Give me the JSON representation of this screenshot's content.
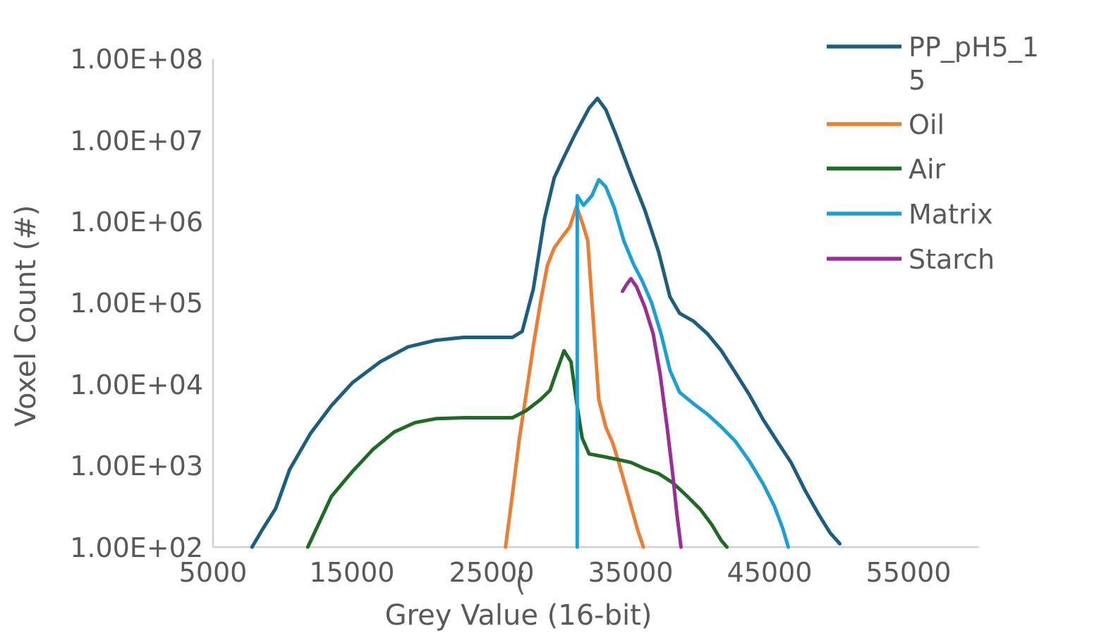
{
  "chart_data": {
    "type": "line",
    "xlabel": "Grey Value (16-bit)",
    "ylabel": "Voxel Count (#)",
    "y_scale": "log",
    "x_range": [
      5000,
      60000
    ],
    "y_range": [
      100,
      100000000
    ],
    "x_ticks": [
      "5000",
      "15000",
      "25000",
      "35000",
      "45000",
      "55000"
    ],
    "y_ticks": [
      "1.00E+08",
      "1.00E+07",
      "1.00E+06",
      "1.00E+05",
      "1.00E+04",
      "1.00E+03",
      "1.00E+02"
    ],
    "stray_label": "(",
    "legend_position": "top-right",
    "legend_lines": {
      "PP_pH5_15": [
        "PP_pH5_1",
        "5"
      ]
    },
    "series": [
      {
        "name": "PP_pH5_15",
        "color": "#1a5e82",
        "points": [
          [
            7800,
            100
          ],
          [
            8500,
            160
          ],
          [
            9500,
            300
          ],
          [
            10500,
            900
          ],
          [
            12000,
            2500
          ],
          [
            13500,
            5500
          ],
          [
            15000,
            10500
          ],
          [
            17000,
            19000
          ],
          [
            19000,
            29000
          ],
          [
            21000,
            35000
          ],
          [
            23000,
            38000
          ],
          [
            25000,
            38000
          ],
          [
            26500,
            38000
          ],
          [
            27200,
            45000
          ],
          [
            28000,
            150000
          ],
          [
            28800,
            1100000
          ],
          [
            29500,
            3500000
          ],
          [
            30200,
            6300000
          ],
          [
            31000,
            12000000
          ],
          [
            32000,
            25000000
          ],
          [
            32600,
            33000000
          ],
          [
            33200,
            24000000
          ],
          [
            34000,
            11000000
          ],
          [
            35000,
            3800000
          ],
          [
            36000,
            1400000
          ],
          [
            37000,
            420000
          ],
          [
            37800,
            120000
          ],
          [
            38500,
            75000
          ],
          [
            39500,
            60000
          ],
          [
            40500,
            42000
          ],
          [
            41500,
            26000
          ],
          [
            42500,
            14000
          ],
          [
            43500,
            7500
          ],
          [
            44500,
            3700
          ],
          [
            45500,
            2000
          ],
          [
            46500,
            1100
          ],
          [
            47500,
            500
          ],
          [
            48500,
            250
          ],
          [
            49300,
            150
          ],
          [
            50000,
            110
          ]
        ]
      },
      {
        "name": "Oil",
        "color": "#ed7d31",
        "points": [
          [
            26000,
            100
          ],
          [
            26500,
            450
          ],
          [
            27000,
            2200
          ],
          [
            27500,
            8000
          ],
          [
            28000,
            30000
          ],
          [
            28500,
            100000
          ],
          [
            29000,
            290000
          ],
          [
            29500,
            480000
          ],
          [
            30000,
            630000
          ],
          [
            30600,
            860000
          ],
          [
            31100,
            1550000
          ],
          [
            31500,
            990000
          ],
          [
            31900,
            590000
          ],
          [
            32300,
            60000
          ],
          [
            32700,
            6500
          ],
          [
            33200,
            3000
          ],
          [
            33700,
            1900
          ],
          [
            34200,
            1000
          ],
          [
            34800,
            430
          ],
          [
            35500,
            160
          ],
          [
            35900,
            100
          ]
        ]
      },
      {
        "name": "Air",
        "color": "#1e6b24",
        "points": [
          [
            11800,
            100
          ],
          [
            12500,
            180
          ],
          [
            13500,
            420
          ],
          [
            15000,
            850
          ],
          [
            16500,
            1600
          ],
          [
            18000,
            2600
          ],
          [
            19500,
            3400
          ],
          [
            21000,
            3800
          ],
          [
            23000,
            3900
          ],
          [
            25000,
            3900
          ],
          [
            26500,
            3900
          ],
          [
            27500,
            4800
          ],
          [
            28500,
            6500
          ],
          [
            29200,
            8500
          ],
          [
            29700,
            15000
          ],
          [
            30200,
            26000
          ],
          [
            30700,
            19000
          ],
          [
            31100,
            6000
          ],
          [
            31500,
            2200
          ],
          [
            32000,
            1400
          ],
          [
            33000,
            1300
          ],
          [
            34000,
            1200
          ],
          [
            35000,
            1100
          ],
          [
            36000,
            920
          ],
          [
            37000,
            800
          ],
          [
            38000,
            620
          ],
          [
            39000,
            430
          ],
          [
            40000,
            290
          ],
          [
            40800,
            190
          ],
          [
            41500,
            120
          ],
          [
            41900,
            100
          ]
        ]
      },
      {
        "name": "Matrix",
        "color": "#1aa0d8",
        "points": [
          [
            31150,
            100
          ],
          [
            31150,
            2100000
          ],
          [
            31600,
            1600000
          ],
          [
            32200,
            2100000
          ],
          [
            32700,
            3300000
          ],
          [
            33200,
            2700000
          ],
          [
            33800,
            1500000
          ],
          [
            34500,
            580000
          ],
          [
            35200,
            300000
          ],
          [
            35800,
            190000
          ],
          [
            36500,
            100000
          ],
          [
            37200,
            40000
          ],
          [
            37800,
            15000
          ],
          [
            38500,
            8000
          ],
          [
            39500,
            5800
          ],
          [
            40500,
            4300
          ],
          [
            41500,
            3000
          ],
          [
            42500,
            2000
          ],
          [
            43500,
            1150
          ],
          [
            44500,
            600
          ],
          [
            45300,
            320
          ],
          [
            45900,
            170
          ],
          [
            46300,
            100
          ]
        ]
      },
      {
        "name": "Starch",
        "color": "#9b2d9b",
        "points": [
          [
            34400,
            140000
          ],
          [
            34700,
            170000
          ],
          [
            35000,
            200000
          ],
          [
            35400,
            160000
          ],
          [
            36000,
            90000
          ],
          [
            36600,
            42000
          ],
          [
            37100,
            13500
          ],
          [
            37600,
            3000
          ],
          [
            38000,
            800
          ],
          [
            38300,
            260
          ],
          [
            38600,
            100
          ]
        ]
      }
    ]
  }
}
